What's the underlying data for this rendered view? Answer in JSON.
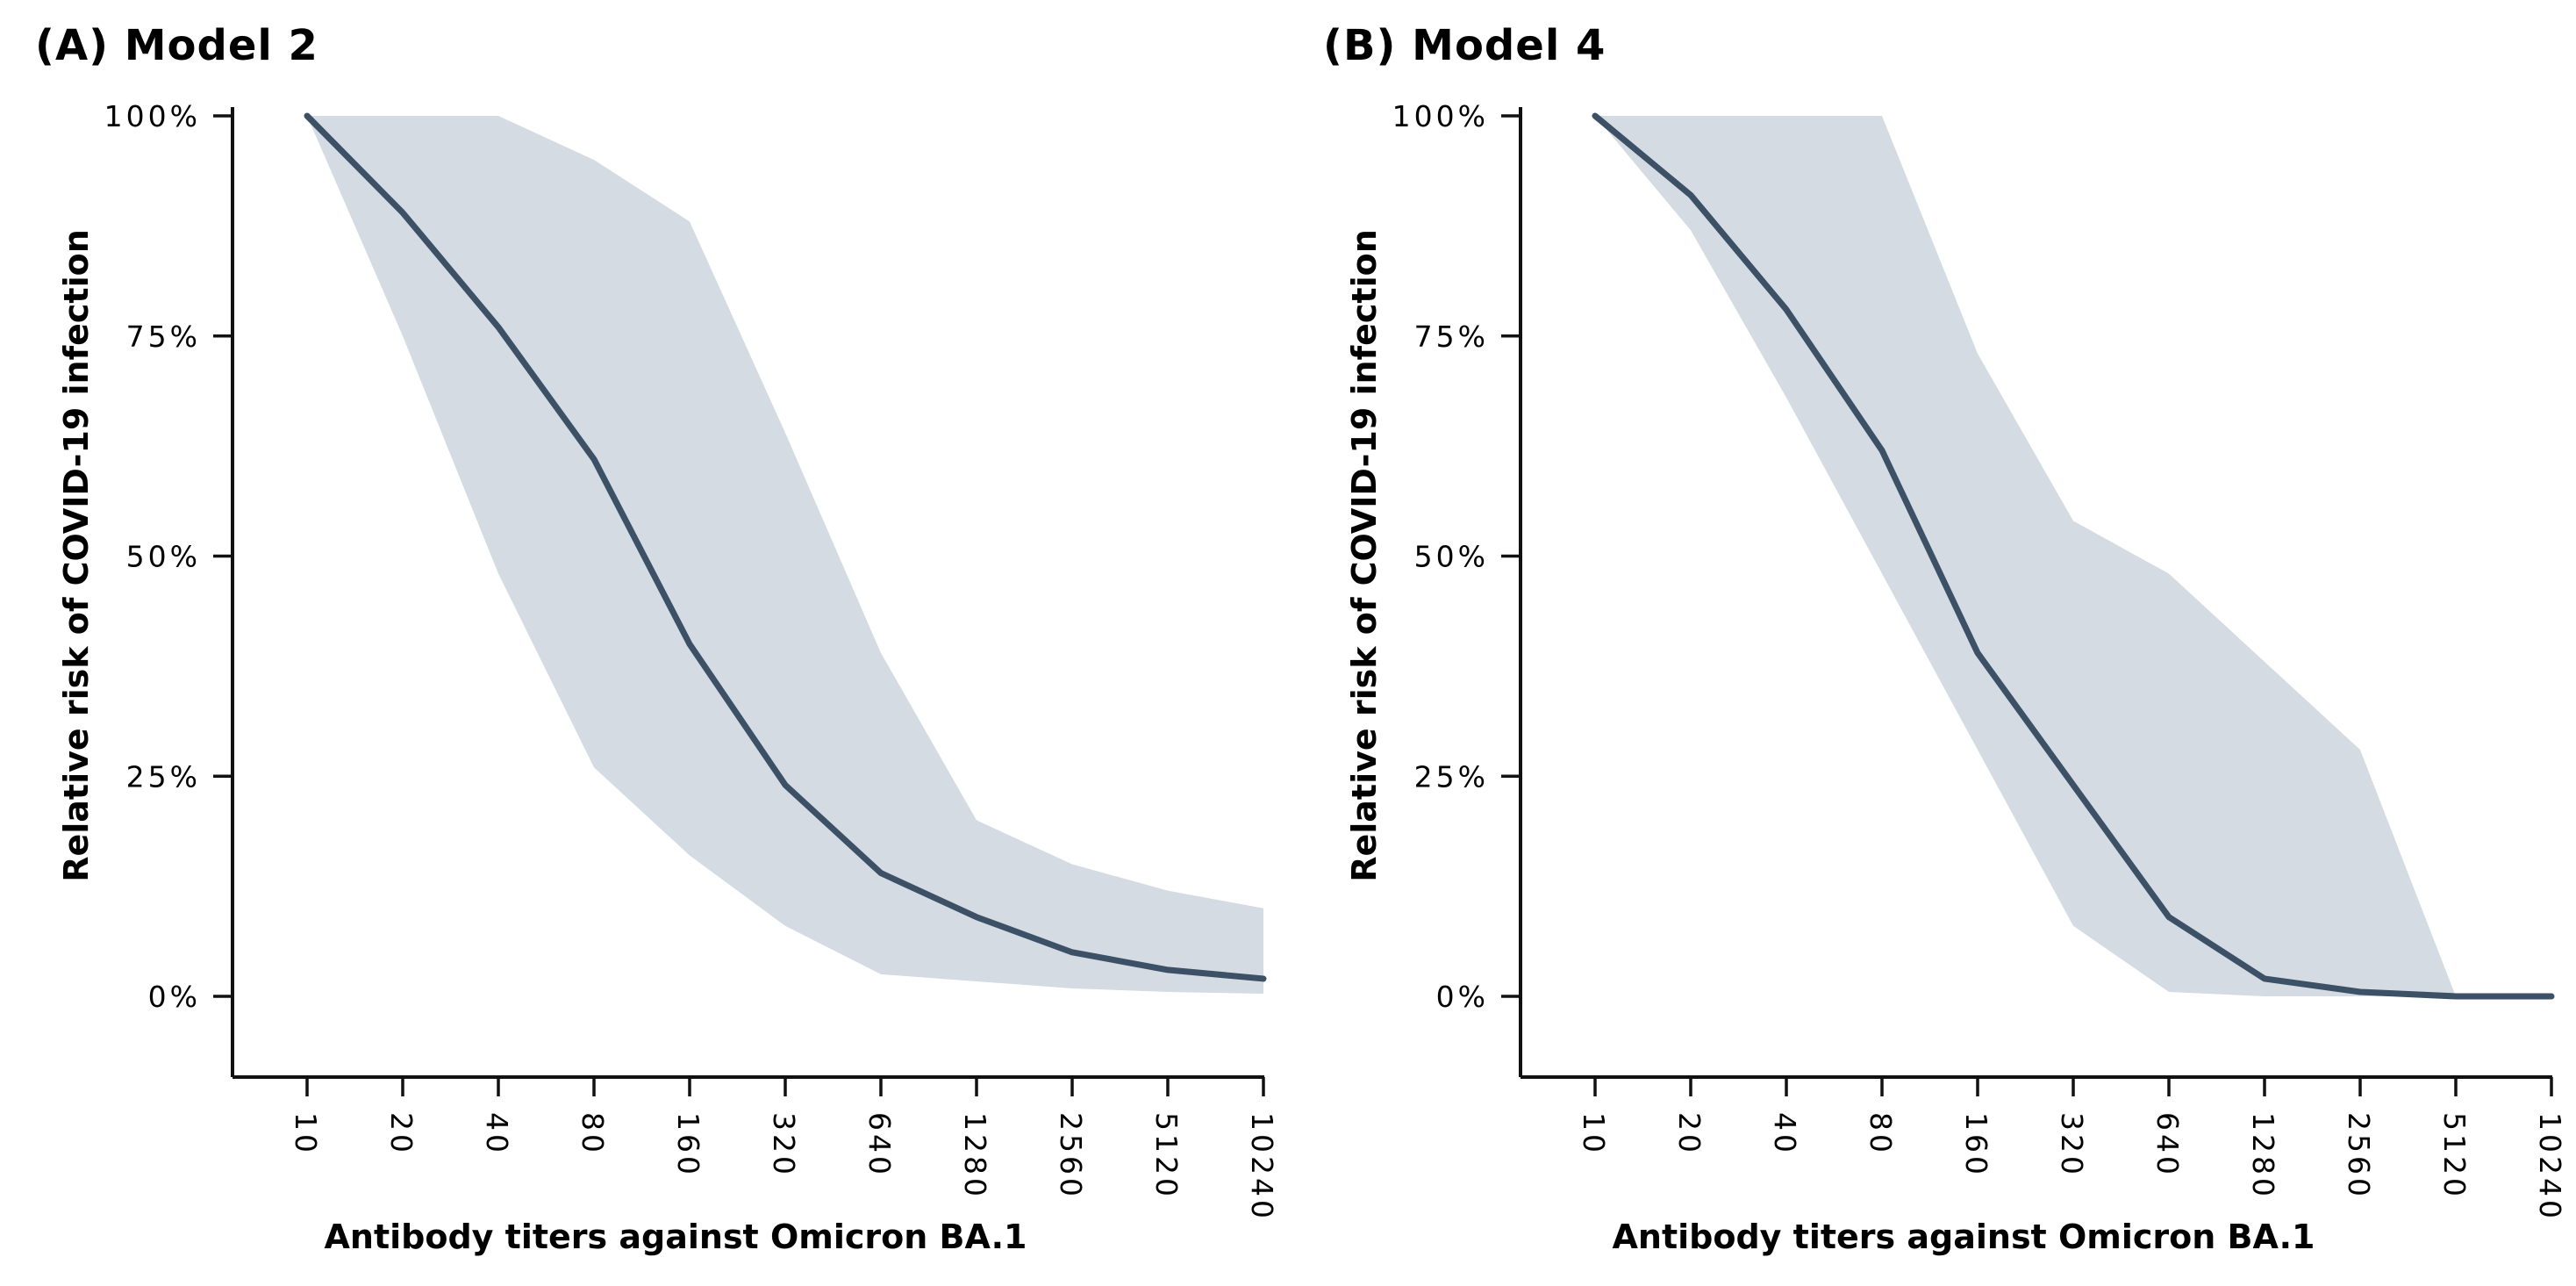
{
  "figure": {
    "background_color": "#ffffff",
    "text_color": "#000000",
    "axis_color": "#111111",
    "line_color": "#3c5066",
    "band_color": "#d4dbe3"
  },
  "chart_data": [
    {
      "type": "line",
      "title": "(A) Model 2",
      "xlabel": "Antibody titers against Omicron BA.1",
      "ylabel": "Relative risk of COVID-19 infection",
      "x_scale": "log2",
      "categories": [
        10,
        20,
        40,
        80,
        160,
        320,
        640,
        1280,
        2560,
        5120,
        10240
      ],
      "x_tick_labels": [
        "10",
        "20",
        "40",
        "80",
        "160",
        "320",
        "640",
        "1280",
        "2560",
        "5120",
        "10240"
      ],
      "y_ticks_percent": [
        0,
        25,
        50,
        75,
        100
      ],
      "y_tick_labels": [
        "0%",
        "25%",
        "50%",
        "75%",
        "100%"
      ],
      "ylim": [
        0,
        100
      ],
      "grid": false,
      "legend": false,
      "series": [
        {
          "name": "risk",
          "role": "mean-line",
          "values_percent": [
            100,
            89,
            76,
            61,
            40,
            24,
            14,
            9,
            5,
            3,
            2
          ]
        },
        {
          "name": "upper",
          "role": "band-upper",
          "values_percent": [
            100,
            100,
            100,
            95,
            88,
            64,
            39,
            20,
            15,
            12,
            10
          ]
        },
        {
          "name": "lower",
          "role": "band-lower",
          "values_percent": [
            100,
            75,
            48,
            26,
            16,
            8,
            2.5,
            1.7,
            0.9,
            0.5,
            0.3
          ]
        }
      ]
    },
    {
      "type": "line",
      "title": "(B) Model 4",
      "xlabel": "Antibody titers against Omicron BA.1",
      "ylabel": "Relative risk of COVID-19 infection",
      "x_scale": "log2",
      "categories": [
        10,
        20,
        40,
        80,
        160,
        320,
        640,
        1280,
        2560,
        5120,
        10240
      ],
      "x_tick_labels": [
        "10",
        "20",
        "40",
        "80",
        "160",
        "320",
        "640",
        "1280",
        "2560",
        "5120",
        "10240"
      ],
      "y_ticks_percent": [
        0,
        25,
        50,
        75,
        100
      ],
      "y_tick_labels": [
        "0%",
        "25%",
        "50%",
        "75%",
        "100%"
      ],
      "ylim": [
        0,
        100
      ],
      "grid": false,
      "legend": false,
      "series": [
        {
          "name": "risk",
          "role": "mean-line",
          "values_percent": [
            100,
            91,
            78,
            62,
            39,
            24,
            9,
            2,
            0.5,
            0,
            0
          ]
        },
        {
          "name": "upper",
          "role": "band-upper",
          "values_percent": [
            100,
            100,
            100,
            100,
            73,
            54,
            48,
            38,
            28,
            0,
            0
          ]
        },
        {
          "name": "lower",
          "role": "band-lower",
          "values_percent": [
            100,
            87,
            68,
            48,
            28,
            8,
            0.5,
            0,
            0,
            0,
            0
          ]
        }
      ]
    }
  ]
}
